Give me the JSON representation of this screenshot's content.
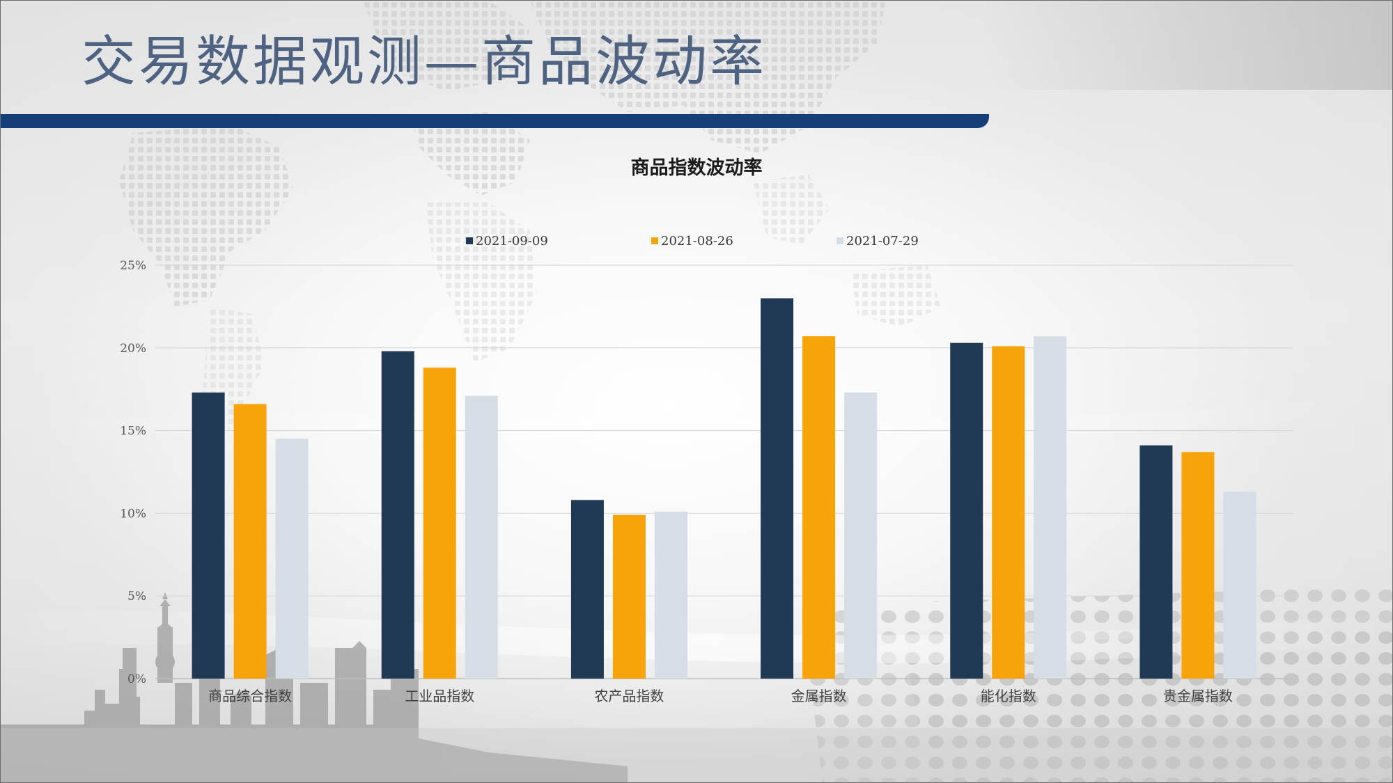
{
  "page": {
    "title": "交易数据观测—商品波动率"
  },
  "colors": {
    "title_text": "#4e6282",
    "title_rule": "#163f7a",
    "grid": "#d3d3d3"
  },
  "chart_data": {
    "type": "bar",
    "title": "商品指数波动率",
    "categories": [
      "商品综合指数",
      "工业品指数",
      "农产品指数",
      "金属指数",
      "能化指数",
      "贵金属指数"
    ],
    "series": [
      {
        "name": "2021-09-09",
        "color": "#203a56",
        "values": [
          17.3,
          19.8,
          10.8,
          23.0,
          20.3,
          14.1
        ]
      },
      {
        "name": "2021-08-26",
        "color": "#f7a30a",
        "values": [
          16.6,
          18.8,
          9.9,
          20.7,
          20.1,
          13.7
        ]
      },
      {
        "name": "2021-07-29",
        "color": "#d6dde5",
        "values": [
          14.5,
          17.1,
          10.1,
          17.3,
          20.7,
          11.3
        ]
      }
    ],
    "ylim": [
      0,
      25
    ],
    "yticks": [
      {
        "value": 0,
        "label": "0%"
      },
      {
        "value": 5,
        "label": "5%"
      },
      {
        "value": 10,
        "label": "10%"
      },
      {
        "value": 15,
        "label": "15%"
      },
      {
        "value": 20,
        "label": "20%"
      },
      {
        "value": 25,
        "label": "25%"
      }
    ],
    "grid": true,
    "legend_position": "top"
  }
}
